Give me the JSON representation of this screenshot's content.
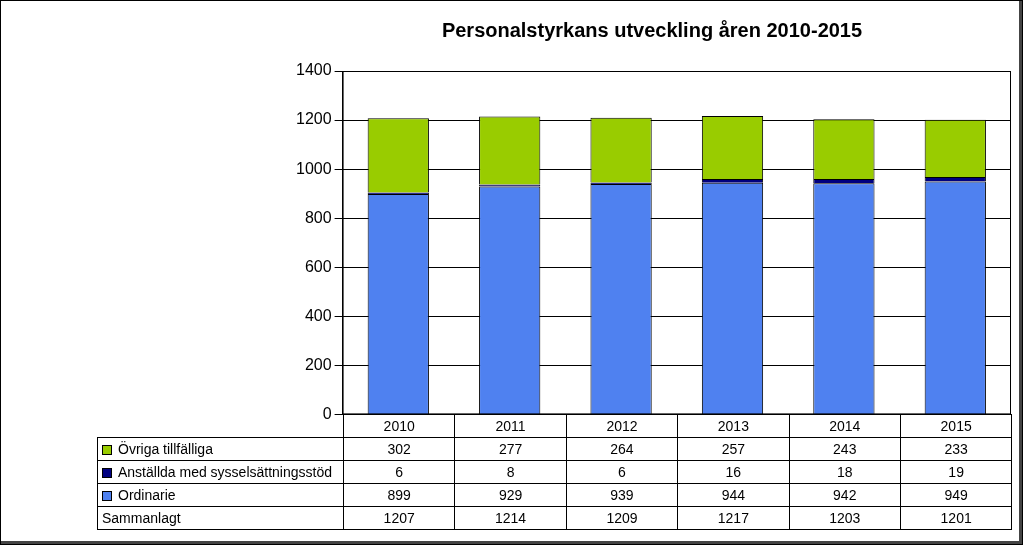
{
  "chart_data": {
    "type": "bar",
    "title": "Personalstyrkans utveckling åren 2010-2015",
    "categories": [
      "2010",
      "2011",
      "2012",
      "2013",
      "2014",
      "2015"
    ],
    "series": [
      {
        "name": "Övriga tillfälliga",
        "color": "#99cc00",
        "values": [
          302,
          277,
          264,
          257,
          243,
          233
        ]
      },
      {
        "name": "Anställda med sysselsättningsstöd",
        "color": "#000080",
        "values": [
          6,
          8,
          6,
          16,
          18,
          19
        ]
      },
      {
        "name": "Ordinarie",
        "color": "#4f81f0",
        "values": [
          899,
          929,
          939,
          944,
          942,
          949
        ]
      }
    ],
    "total": {
      "name": "Sammanlagt",
      "values": [
        1207,
        1214,
        1209,
        1217,
        1203,
        1201
      ]
    },
    "ylim": [
      0,
      1400
    ],
    "yticks": [
      0,
      200,
      400,
      600,
      800,
      1000,
      1200,
      1400
    ],
    "grid": true,
    "stacked": true
  }
}
